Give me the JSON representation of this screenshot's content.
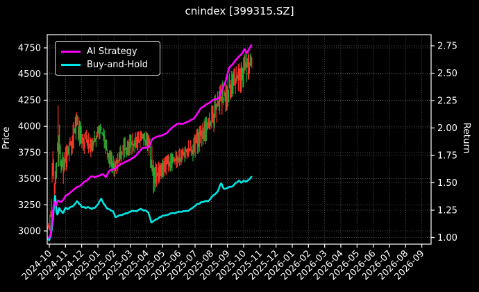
{
  "title": "cnindex [399315.SZ]",
  "legend": {
    "items": [
      {
        "label": "AI Strategy",
        "color": "#ff00ff"
      },
      {
        "label": "Buy-and-Hold",
        "color": "#00e5e5"
      }
    ]
  },
  "axes": {
    "left": {
      "label": "Price",
      "ticks": [
        "3000",
        "3250",
        "3500",
        "3750",
        "4000",
        "4250",
        "4500",
        "4750"
      ]
    },
    "right": {
      "label": "Return",
      "ticks": [
        "1.00",
        "1.25",
        "1.50",
        "1.75",
        "2.00",
        "2.25",
        "2.50",
        "2.75"
      ]
    },
    "x": {
      "ticks": [
        "2024-10",
        "2024-11",
        "2024-12",
        "2025-01",
        "2025-02",
        "2025-03",
        "2025-04",
        "2025-05",
        "2025-06",
        "2025-07",
        "2025-08",
        "2025-09",
        "2025-10",
        "2025-11",
        "2025-12",
        "2026-01",
        "2026-02",
        "2026-03",
        "2026-04",
        "2026-05",
        "2026-06",
        "2026-07",
        "2026-08",
        "2026-09"
      ]
    }
  },
  "colors": {
    "background": "#000000",
    "ai_strategy": "#ff00ff",
    "buy_and_hold": "#00e5e5",
    "price_up": "#f23326",
    "price_down": "#1cae33",
    "grid": "#6a6a6a",
    "spine": "#ffffff",
    "text": "#ffffff"
  },
  "chart_data": {
    "type": "line",
    "x_unit": "months since 2024-10 (data ends mid 2025-10; axis extends to 2026-09 with no data)",
    "price_axis_range": [
      2875,
      4875
    ],
    "return_axis_range": [
      0.94,
      2.85
    ],
    "grid": "dotted",
    "legend_position": "upper left",
    "series": [
      {
        "name": "AI Strategy",
        "axis": "return",
        "points": [
          [
            0,
            1.0
          ],
          [
            0.1,
            1.03
          ],
          [
            0.2,
            1.21
          ],
          [
            0.3,
            1.33
          ],
          [
            0.4,
            1.29
          ],
          [
            0.55,
            1.34
          ],
          [
            0.7,
            1.32
          ],
          [
            0.85,
            1.34
          ],
          [
            1.0,
            1.38
          ],
          [
            1.2,
            1.4
          ],
          [
            1.45,
            1.43
          ],
          [
            1.7,
            1.46
          ],
          [
            1.9,
            1.47
          ],
          [
            2.1,
            1.5
          ],
          [
            2.3,
            1.52
          ],
          [
            2.6,
            1.56
          ],
          [
            2.8,
            1.55
          ],
          [
            3.0,
            1.56
          ],
          [
            3.3,
            1.58
          ],
          [
            3.5,
            1.55
          ],
          [
            3.7,
            1.61
          ],
          [
            3.9,
            1.62
          ],
          [
            4.1,
            1.63
          ],
          [
            4.4,
            1.67
          ],
          [
            4.7,
            1.69
          ],
          [
            5.0,
            1.71
          ],
          [
            5.3,
            1.74
          ],
          [
            5.6,
            1.79
          ],
          [
            5.75,
            1.82
          ],
          [
            6.0,
            1.82
          ],
          [
            6.2,
            1.84
          ],
          [
            6.35,
            1.9
          ],
          [
            6.6,
            1.92
          ],
          [
            6.9,
            1.93
          ],
          [
            7.2,
            1.95
          ],
          [
            7.5,
            1.99
          ],
          [
            7.8,
            2.03
          ],
          [
            8.0,
            2.04
          ],
          [
            8.3,
            2.04
          ],
          [
            8.6,
            2.06
          ],
          [
            8.9,
            2.08
          ],
          [
            9.1,
            2.12
          ],
          [
            9.3,
            2.17
          ],
          [
            9.6,
            2.21
          ],
          [
            9.9,
            2.23
          ],
          [
            10.2,
            2.26
          ],
          [
            10.45,
            2.27
          ],
          [
            10.6,
            2.33
          ],
          [
            10.75,
            2.38
          ],
          [
            10.9,
            2.43
          ],
          [
            11.1,
            2.55
          ],
          [
            11.3,
            2.58
          ],
          [
            11.5,
            2.62
          ],
          [
            11.7,
            2.65
          ],
          [
            11.9,
            2.68
          ],
          [
            12.05,
            2.72
          ],
          [
            12.2,
            2.68
          ],
          [
            12.35,
            2.73
          ],
          [
            12.5,
            2.76
          ]
        ]
      },
      {
        "name": "Buy-and-Hold",
        "axis": "return",
        "points": [
          [
            0,
            0.98
          ],
          [
            0.1,
            1.02
          ],
          [
            0.18,
            1.1
          ],
          [
            0.28,
            1.27
          ],
          [
            0.35,
            1.4
          ],
          [
            0.45,
            1.23
          ],
          [
            0.52,
            1.2
          ],
          [
            0.6,
            1.28
          ],
          [
            0.7,
            1.24
          ],
          [
            0.85,
            1.22
          ],
          [
            1.0,
            1.27
          ],
          [
            1.15,
            1.26
          ],
          [
            1.3,
            1.28
          ],
          [
            1.5,
            1.29
          ],
          [
            1.7,
            1.33
          ],
          [
            1.85,
            1.31
          ],
          [
            2.0,
            1.28
          ],
          [
            2.2,
            1.27
          ],
          [
            2.4,
            1.28
          ],
          [
            2.6,
            1.26
          ],
          [
            2.8,
            1.27
          ],
          [
            3.0,
            1.3
          ],
          [
            3.2,
            1.36
          ],
          [
            3.35,
            1.31
          ],
          [
            3.55,
            1.27
          ],
          [
            3.75,
            1.25
          ],
          [
            3.95,
            1.24
          ],
          [
            4.1,
            1.18
          ],
          [
            4.3,
            1.2
          ],
          [
            4.5,
            1.21
          ],
          [
            4.8,
            1.22
          ],
          [
            5.1,
            1.24
          ],
          [
            5.4,
            1.24
          ],
          [
            5.65,
            1.26
          ],
          [
            5.85,
            1.25
          ],
          [
            6.1,
            1.24
          ],
          [
            6.3,
            1.14
          ],
          [
            6.5,
            1.16
          ],
          [
            6.75,
            1.18
          ],
          [
            7.0,
            1.2
          ],
          [
            7.3,
            1.21
          ],
          [
            7.6,
            1.22
          ],
          [
            7.9,
            1.23
          ],
          [
            8.2,
            1.24
          ],
          [
            8.5,
            1.24
          ],
          [
            8.8,
            1.26
          ],
          [
            9.1,
            1.3
          ],
          [
            9.4,
            1.32
          ],
          [
            9.6,
            1.34
          ],
          [
            9.8,
            1.33
          ],
          [
            10.0,
            1.36
          ],
          [
            10.2,
            1.39
          ],
          [
            10.4,
            1.42
          ],
          [
            10.6,
            1.5
          ],
          [
            10.75,
            1.45
          ],
          [
            10.9,
            1.44
          ],
          [
            11.1,
            1.46
          ],
          [
            11.3,
            1.47
          ],
          [
            11.5,
            1.5
          ],
          [
            11.7,
            1.52
          ],
          [
            11.85,
            1.5
          ],
          [
            12.0,
            1.52
          ],
          [
            12.15,
            1.51
          ],
          [
            12.3,
            1.53
          ],
          [
            12.5,
            1.56
          ]
        ]
      },
      {
        "name": "Price (daily high-low bars, red=up / green=down)",
        "axis": "price",
        "points_t_low_high": [
          [
            0,
            2980,
            3090
          ],
          [
            0.12,
            3060,
            3300
          ],
          [
            0.2,
            3420,
            3800
          ],
          [
            0.32,
            3300,
            3600
          ],
          [
            0.45,
            3500,
            3820
          ],
          [
            0.55,
            3620,
            4250
          ],
          [
            0.68,
            3520,
            3900
          ],
          [
            0.85,
            3440,
            3720
          ],
          [
            1.0,
            3550,
            3800
          ],
          [
            1.2,
            3650,
            3900
          ],
          [
            1.45,
            3750,
            4010
          ],
          [
            1.7,
            3900,
            4140
          ],
          [
            1.9,
            3800,
            4060
          ],
          [
            2.1,
            3700,
            3910
          ],
          [
            2.3,
            3790,
            3990
          ],
          [
            2.55,
            3700,
            3890
          ],
          [
            2.8,
            3760,
            3960
          ],
          [
            3.0,
            3850,
            4000
          ],
          [
            3.2,
            3900,
            4030
          ],
          [
            3.45,
            3760,
            3950
          ],
          [
            3.7,
            3600,
            3810
          ],
          [
            3.9,
            3550,
            3740
          ],
          [
            4.05,
            3510,
            3680
          ],
          [
            4.3,
            3600,
            3780
          ],
          [
            4.6,
            3680,
            3890
          ],
          [
            4.9,
            3720,
            3920
          ],
          [
            5.2,
            3740,
            3940
          ],
          [
            5.5,
            3780,
            3950
          ],
          [
            5.75,
            3820,
            3960
          ],
          [
            6.0,
            3790,
            3950
          ],
          [
            6.2,
            3700,
            3900
          ],
          [
            6.38,
            3340,
            3790
          ],
          [
            6.6,
            3420,
            3640
          ],
          [
            6.85,
            3480,
            3680
          ],
          [
            7.1,
            3520,
            3700
          ],
          [
            7.4,
            3560,
            3740
          ],
          [
            7.7,
            3580,
            3760
          ],
          [
            8.0,
            3620,
            3790
          ],
          [
            8.3,
            3640,
            3800
          ],
          [
            8.55,
            3700,
            3870
          ],
          [
            8.8,
            3650,
            3870
          ],
          [
            9.1,
            3720,
            3970
          ],
          [
            9.4,
            3780,
            4020
          ],
          [
            9.65,
            3830,
            4090
          ],
          [
            9.9,
            3870,
            4140
          ],
          [
            10.2,
            3960,
            4290
          ],
          [
            10.5,
            4110,
            4380
          ],
          [
            10.75,
            4110,
            4450
          ],
          [
            11.0,
            4160,
            4480
          ],
          [
            11.2,
            4270,
            4530
          ],
          [
            11.45,
            4300,
            4560
          ],
          [
            11.7,
            4340,
            4600
          ],
          [
            11.9,
            4300,
            4620
          ],
          [
            12.1,
            4390,
            4700
          ],
          [
            12.3,
            4450,
            4740
          ],
          [
            12.5,
            4490,
            4660
          ]
        ]
      }
    ]
  }
}
